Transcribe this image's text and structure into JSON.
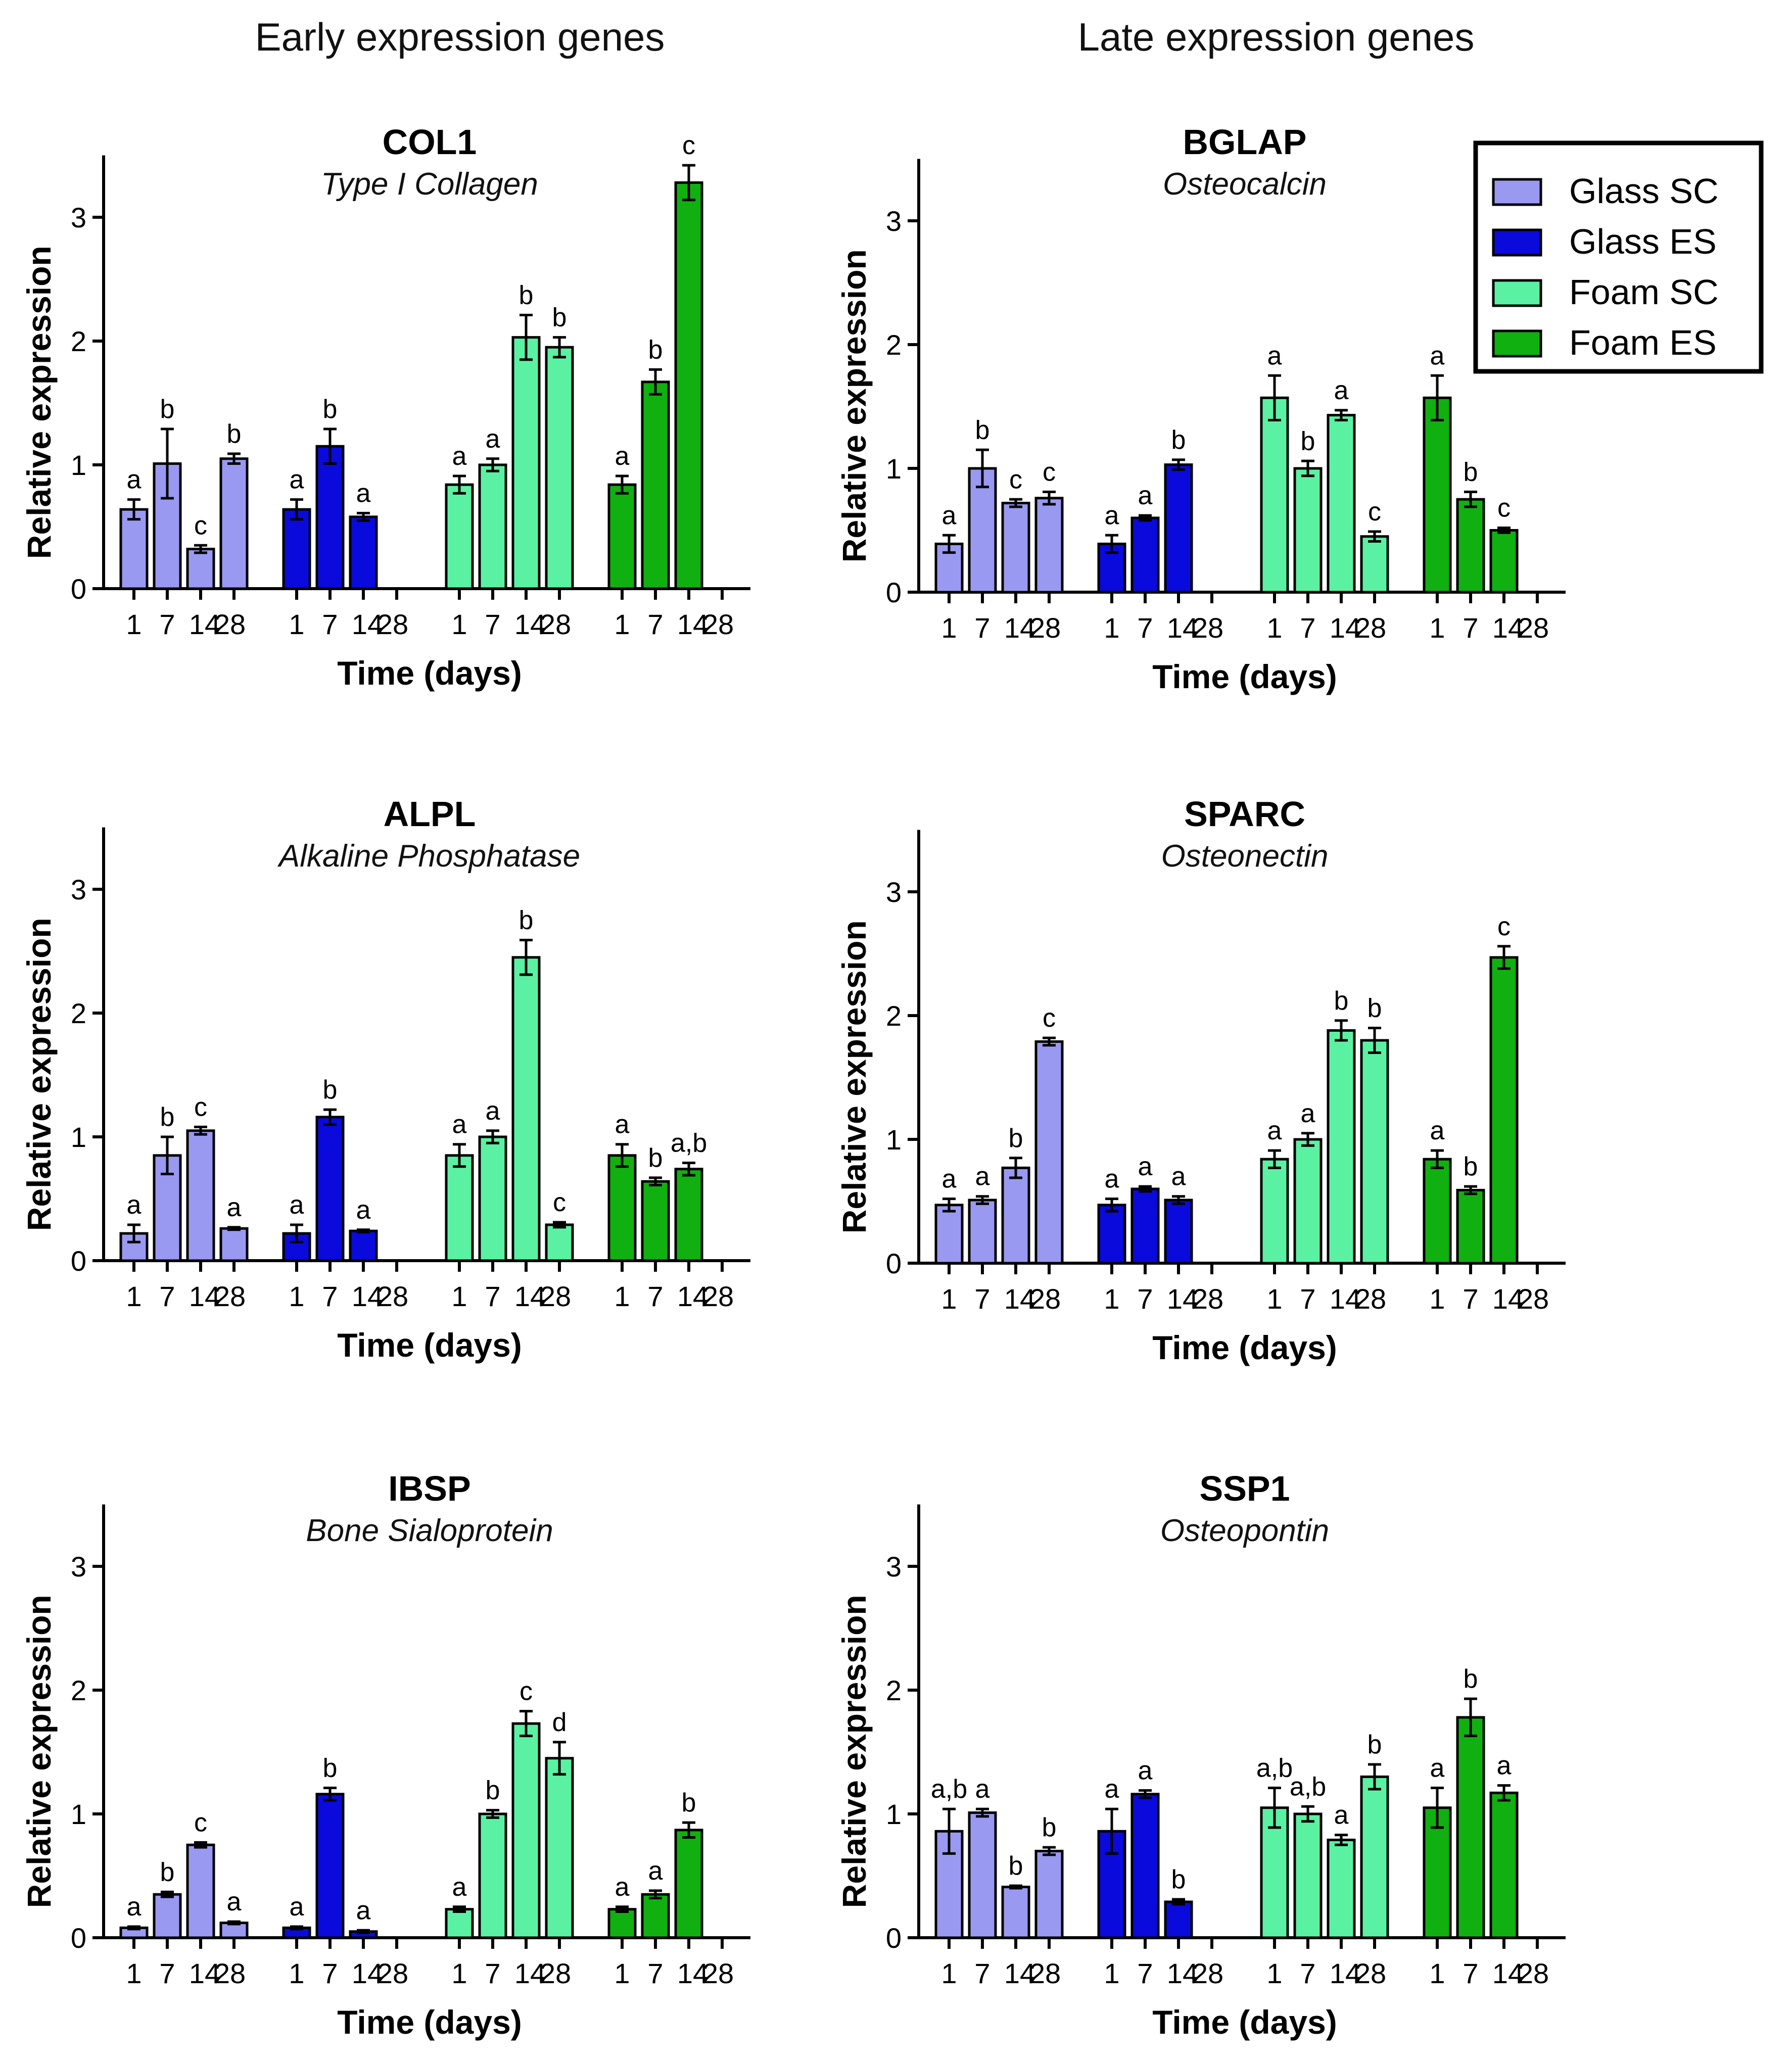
{
  "column_titles": [
    "Early expression genes",
    "Late expression genes"
  ],
  "legend": {
    "entries": [
      {
        "name": "Glass SC",
        "color": "#9999f2"
      },
      {
        "name": "Glass ES",
        "color": "#0a0adc"
      },
      {
        "name": "Foam SC",
        "color": "#5af2a2"
      },
      {
        "name": "Foam ES",
        "color": "#10b010"
      }
    ]
  },
  "chart_data": [
    {
      "type": "bar",
      "title": "COL1",
      "subtitle": "Type I Collagen",
      "xlabel": "Time (days)",
      "ylabel": "Relative expression",
      "ylim": [
        0,
        3.5
      ],
      "yticks": [
        "0",
        "1",
        "2",
        "3"
      ],
      "categories": [
        "1",
        "7",
        "14",
        "28"
      ],
      "series": [
        {
          "name": "Glass SC",
          "values": [
            0.64,
            1.01,
            0.32,
            1.05
          ],
          "errors": [
            0.08,
            0.28,
            0.03,
            0.04
          ],
          "labels": [
            "a",
            "b",
            "c",
            "b"
          ]
        },
        {
          "name": "Glass ES",
          "values": [
            0.64,
            1.15,
            0.58,
            null
          ],
          "errors": [
            0.08,
            0.14,
            0.03,
            null
          ],
          "labels": [
            "a",
            "b",
            "a",
            ""
          ]
        },
        {
          "name": "Foam SC",
          "values": [
            0.84,
            1.0,
            2.03,
            1.95
          ],
          "errors": [
            0.07,
            0.05,
            0.18,
            0.08
          ],
          "labels": [
            "a",
            "a",
            "b",
            "b"
          ]
        },
        {
          "name": "Foam ES",
          "values": [
            0.84,
            1.67,
            3.28,
            null
          ],
          "errors": [
            0.07,
            0.1,
            0.14,
            null
          ],
          "labels": [
            "a",
            "b",
            "c",
            ""
          ]
        }
      ]
    },
    {
      "type": "bar",
      "title": "BGLAP",
      "subtitle": "Osteocalcin",
      "xlabel": "Time (days)",
      "ylabel": "Relative expression",
      "ylim": [
        0,
        3.5
      ],
      "yticks": [
        "0",
        "1",
        "2",
        "3"
      ],
      "categories": [
        "1",
        "7",
        "14",
        "28"
      ],
      "series": [
        {
          "name": "Glass SC",
          "values": [
            0.39,
            1.0,
            0.72,
            0.76
          ],
          "errors": [
            0.07,
            0.15,
            0.03,
            0.05
          ],
          "labels": [
            "a",
            "b",
            "c",
            "c"
          ]
        },
        {
          "name": "Glass ES",
          "values": [
            0.39,
            0.6,
            1.03,
            null
          ],
          "errors": [
            0.07,
            0.02,
            0.04,
            null
          ],
          "labels": [
            "a",
            "a",
            "b",
            ""
          ]
        },
        {
          "name": "Foam SC",
          "values": [
            1.57,
            1.0,
            1.43,
            0.45
          ],
          "errors": [
            0.18,
            0.06,
            0.04,
            0.04
          ],
          "labels": [
            "a",
            "b",
            "a",
            "c"
          ]
        },
        {
          "name": "Foam ES",
          "values": [
            1.57,
            0.75,
            0.5,
            null
          ],
          "errors": [
            0.18,
            0.06,
            0.02,
            null
          ],
          "labels": [
            "a",
            "b",
            "c",
            ""
          ]
        }
      ]
    },
    {
      "type": "bar",
      "title": "ALPL",
      "subtitle": "Alkaline Phosphatase",
      "xlabel": "Time (days)",
      "ylabel": "Relative expression",
      "ylim": [
        0,
        3.5
      ],
      "yticks": [
        "0",
        "1",
        "2",
        "3"
      ],
      "categories": [
        "1",
        "7",
        "14",
        "28"
      ],
      "series": [
        {
          "name": "Glass SC",
          "values": [
            0.22,
            0.85,
            1.05,
            0.26
          ],
          "errors": [
            0.07,
            0.15,
            0.03,
            0.01
          ],
          "labels": [
            "a",
            "b",
            "c",
            "a"
          ]
        },
        {
          "name": "Glass ES",
          "values": [
            0.22,
            1.16,
            0.24,
            null
          ],
          "errors": [
            0.07,
            0.06,
            0.01,
            null
          ],
          "labels": [
            "a",
            "b",
            "a",
            ""
          ]
        },
        {
          "name": "Foam SC",
          "values": [
            0.85,
            1.0,
            2.45,
            0.29
          ],
          "errors": [
            0.09,
            0.05,
            0.14,
            0.02
          ],
          "labels": [
            "a",
            "a",
            "b",
            "c"
          ]
        },
        {
          "name": "Foam ES",
          "values": [
            0.85,
            0.64,
            0.74,
            null
          ],
          "errors": [
            0.09,
            0.03,
            0.05,
            null
          ],
          "labels": [
            "a",
            "b",
            "a,b",
            ""
          ]
        }
      ]
    },
    {
      "type": "bar",
      "title": "SPARC",
      "subtitle": "Osteonectin",
      "xlabel": "Time (days)",
      "ylabel": "Relative expression",
      "ylim": [
        0,
        3.5
      ],
      "yticks": [
        "0",
        "1",
        "2",
        "3"
      ],
      "categories": [
        "1",
        "7",
        "14",
        "28"
      ],
      "series": [
        {
          "name": "Glass SC",
          "values": [
            0.47,
            0.51,
            0.77,
            1.79
          ],
          "errors": [
            0.05,
            0.03,
            0.08,
            0.03
          ],
          "labels": [
            "a",
            "a",
            "b",
            "c"
          ]
        },
        {
          "name": "Glass ES",
          "values": [
            0.47,
            0.6,
            0.51,
            null
          ],
          "errors": [
            0.05,
            0.02,
            0.03,
            null
          ],
          "labels": [
            "a",
            "a",
            "a",
            ""
          ]
        },
        {
          "name": "Foam SC",
          "values": [
            0.84,
            1.0,
            1.88,
            1.8
          ],
          "errors": [
            0.07,
            0.05,
            0.08,
            0.1
          ],
          "labels": [
            "a",
            "a",
            "b",
            "b"
          ]
        },
        {
          "name": "Foam ES",
          "values": [
            0.84,
            0.59,
            2.47,
            null
          ],
          "errors": [
            0.07,
            0.03,
            0.09,
            null
          ],
          "labels": [
            "a",
            "b",
            "c",
            ""
          ]
        }
      ]
    },
    {
      "type": "bar",
      "title": "IBSP",
      "subtitle": "Bone Sialoprotein",
      "xlabel": "Time (days)",
      "ylabel": "Relative expression",
      "ylim": [
        0,
        3.5
      ],
      "yticks": [
        "0",
        "1",
        "2",
        "3"
      ],
      "categories": [
        "1",
        "7",
        "14",
        "28"
      ],
      "series": [
        {
          "name": "Glass SC",
          "values": [
            0.08,
            0.35,
            0.75,
            0.12
          ],
          "errors": [
            0.01,
            0.02,
            0.02,
            0.01
          ],
          "labels": [
            "a",
            "b",
            "c",
            "a"
          ]
        },
        {
          "name": "Glass ES",
          "values": [
            0.08,
            1.16,
            0.05,
            null
          ],
          "errors": [
            0.01,
            0.05,
            0.01,
            null
          ],
          "labels": [
            "a",
            "b",
            "a",
            ""
          ]
        },
        {
          "name": "Foam SC",
          "values": [
            0.23,
            1.0,
            1.73,
            1.45
          ],
          "errors": [
            0.02,
            0.03,
            0.1,
            0.13
          ],
          "labels": [
            "a",
            "b",
            "c",
            "d"
          ]
        },
        {
          "name": "Foam ES",
          "values": [
            0.23,
            0.35,
            0.87,
            null
          ],
          "errors": [
            0.02,
            0.03,
            0.06,
            null
          ],
          "labels": [
            "a",
            "a",
            "b",
            ""
          ]
        }
      ]
    },
    {
      "type": "bar",
      "title": "SSP1",
      "subtitle": "Osteopontin",
      "xlabel": "Time (days)",
      "ylabel": "Relative expression",
      "ylim": [
        0,
        3.5
      ],
      "yticks": [
        "0",
        "1",
        "2",
        "3"
      ],
      "categories": [
        "1",
        "7",
        "14",
        "28"
      ],
      "series": [
        {
          "name": "Glass SC",
          "values": [
            0.86,
            1.01,
            0.41,
            0.7
          ],
          "errors": [
            0.18,
            0.03,
            0.01,
            0.03
          ],
          "labels": [
            "a,b",
            "a",
            "b",
            "b"
          ]
        },
        {
          "name": "Glass ES",
          "values": [
            0.86,
            1.16,
            0.29,
            null
          ],
          "errors": [
            0.18,
            0.03,
            0.02,
            null
          ],
          "labels": [
            "a",
            "a",
            "b",
            ""
          ]
        },
        {
          "name": "Foam SC",
          "values": [
            1.05,
            1.0,
            0.79,
            1.3
          ],
          "errors": [
            0.16,
            0.06,
            0.04,
            0.1
          ],
          "labels": [
            "a,b",
            "a,b",
            "a",
            "b"
          ]
        },
        {
          "name": "Foam ES",
          "values": [
            1.05,
            1.78,
            1.17,
            null
          ],
          "errors": [
            0.16,
            0.15,
            0.06,
            null
          ],
          "labels": [
            "a",
            "b",
            "a",
            ""
          ]
        }
      ]
    }
  ]
}
